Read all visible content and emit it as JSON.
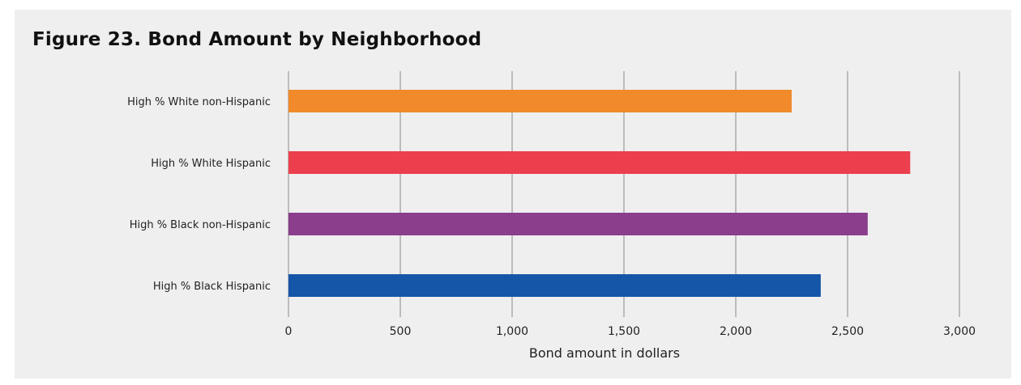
{
  "chart_data": {
    "type": "bar",
    "orientation": "horizontal",
    "title": "Figure 23. Bond Amount by Neighborhood",
    "xlabel": "Bond amount in dollars",
    "ylabel": "",
    "categories": [
      "High % White non-Hispanic",
      "High % White Hispanic",
      "High % Black non-Hispanic",
      "High % Black Hispanic"
    ],
    "values": [
      2250,
      2780,
      2590,
      2380
    ],
    "colors": [
      "#f08a2a",
      "#ec3f4e",
      "#8a3e8c",
      "#1656a8"
    ],
    "xlim": [
      0,
      3000
    ],
    "xticks": [
      0,
      500,
      1000,
      1500,
      2000,
      2500,
      3000
    ],
    "xtick_labels": [
      "0",
      "500",
      "1,000",
      "1,500",
      "2,000",
      "2,500",
      "3,000"
    ],
    "grid": true,
    "legend": "none"
  }
}
